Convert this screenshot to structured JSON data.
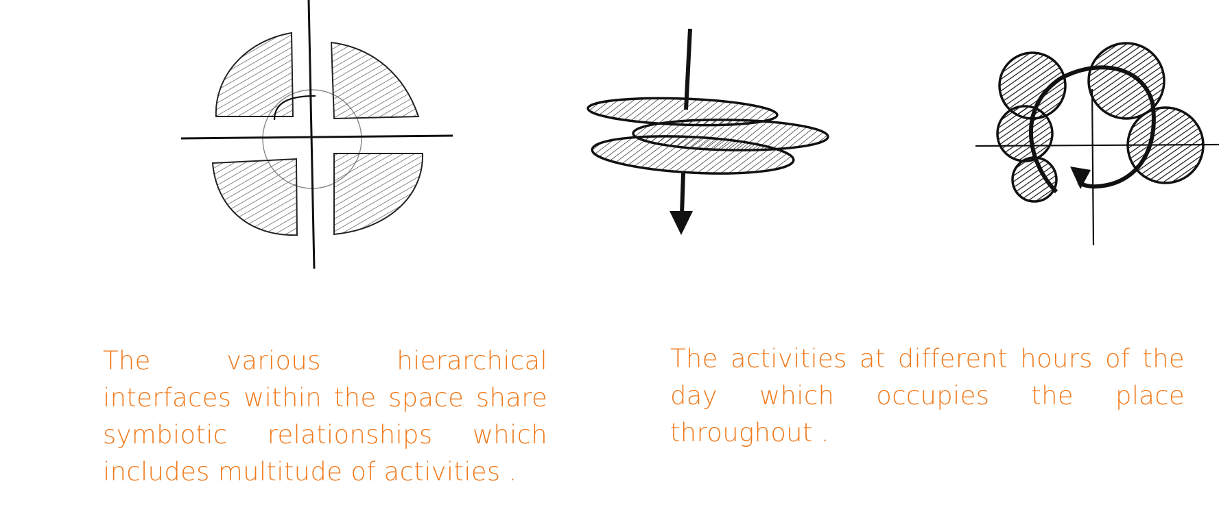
{
  "captions": {
    "left": "The various hierarchical interfaces within the space share symbiotic relationships which includes multitude of activities .",
    "right": "The activities at different hours of the day which occupies the place throughout ."
  },
  "colors": {
    "caption_text": "#f07a1c",
    "ink": "#111111",
    "hatch": "#555555"
  },
  "icons": {
    "left_sketch": "four-quadrant-diagram-icon",
    "middle_sketch": "stacked-ellipses-arrow-icon",
    "right_sketch": "overlapping-circles-cycle-icon"
  }
}
